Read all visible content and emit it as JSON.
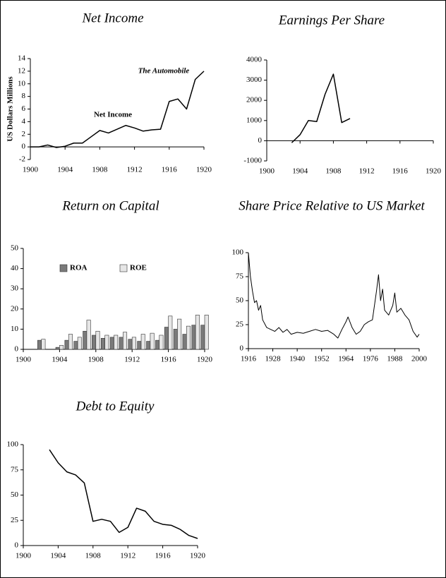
{
  "chart_data": [
    {
      "type": "line",
      "title": "Net Income",
      "ylabel": "US Dollars Millions",
      "annotations": [
        "Net Income",
        "The Automobile"
      ],
      "x": [
        1900,
        1901,
        1902,
        1903,
        1904,
        1905,
        1906,
        1907,
        1908,
        1909,
        1910,
        1911,
        1912,
        1913,
        1914,
        1915,
        1916,
        1917,
        1918,
        1919,
        1920
      ],
      "values": [
        0,
        0,
        0.3,
        -0.1,
        0.1,
        0.6,
        0.6,
        1.6,
        2.6,
        2.2,
        2.8,
        3.4,
        3.0,
        2.5,
        2.7,
        2.8,
        7.2,
        7.6,
        6.0,
        10.7,
        12.0
      ],
      "color": "#000000",
      "xlim": [
        1900,
        1920
      ],
      "xticks": [
        1900,
        1904,
        1908,
        1912,
        1916,
        1920
      ],
      "ylim": [
        -2,
        14
      ],
      "yticks": [
        -2,
        0,
        2,
        4,
        6,
        8,
        10,
        12,
        14
      ]
    },
    {
      "type": "line",
      "title": "Earnings Per Share",
      "x": [
        1903,
        1904,
        1905,
        1906,
        1907,
        1908,
        1909,
        1910
      ],
      "values": [
        -100,
        300,
        1000,
        950,
        2300,
        3300,
        900,
        1100
      ],
      "color": "#000000",
      "xlim": [
        1900,
        1920
      ],
      "xticks": [
        1900,
        1904,
        1908,
        1912,
        1916,
        1920
      ],
      "ylim": [
        -1000,
        4000
      ],
      "yticks": [
        -1000,
        0,
        1000,
        2000,
        3000,
        4000
      ]
    },
    {
      "type": "bar",
      "title": "Return on Capital",
      "legend": "upper-left",
      "x": [
        1902,
        1903,
        1904,
        1905,
        1906,
        1907,
        1908,
        1909,
        1910,
        1911,
        1912,
        1913,
        1914,
        1915,
        1916,
        1917,
        1918,
        1919,
        1920
      ],
      "series": [
        {
          "name": "ROA",
          "color": "#7a7a7a",
          "values": [
            4.5,
            null,
            1,
            4.5,
            4,
            9,
            7,
            5.5,
            6,
            6,
            5,
            4,
            4,
            4.5,
            11,
            10,
            7.5,
            12,
            12
          ]
        },
        {
          "name": "ROE",
          "color": "#e6e6e6",
          "values": [
            5,
            null,
            2,
            7.5,
            6,
            14.5,
            9,
            7,
            7,
            8.5,
            6,
            7.5,
            8,
            7,
            16.5,
            15,
            11.5,
            17,
            17
          ]
        }
      ],
      "xlim": [
        1900,
        1920
      ],
      "xticks": [
        1900,
        1904,
        1908,
        1912,
        1916,
        1920
      ],
      "ylim": [
        0,
        50
      ],
      "yticks": [
        0,
        10,
        20,
        30,
        40,
        50
      ]
    },
    {
      "type": "line",
      "title": "Share Price Relative to US Market",
      "x": [
        1916,
        1917,
        1918,
        1919,
        1920,
        1921,
        1922,
        1923,
        1925,
        1927,
        1929,
        1931,
        1933,
        1935,
        1937,
        1940,
        1943,
        1946,
        1949,
        1952,
        1955,
        1958,
        1960,
        1962,
        1964,
        1965,
        1967,
        1969,
        1971,
        1973,
        1975,
        1977,
        1978,
        1979,
        1980,
        1981,
        1982,
        1983,
        1985,
        1987,
        1988,
        1989,
        1991,
        1993,
        1995,
        1997,
        1999,
        2000
      ],
      "values": [
        100,
        75,
        60,
        48,
        50,
        40,
        45,
        30,
        22,
        20,
        18,
        22,
        17,
        20,
        15,
        17,
        16,
        18,
        20,
        18,
        19,
        15,
        11,
        20,
        28,
        33,
        22,
        15,
        18,
        25,
        28,
        30,
        45,
        60,
        77,
        50,
        62,
        40,
        35,
        45,
        58,
        38,
        42,
        35,
        30,
        18,
        12,
        15
      ],
      "color": "#000000",
      "xlim": [
        1916,
        2000
      ],
      "xticks": [
        1916,
        1928,
        1940,
        1952,
        1964,
        1976,
        1988,
        2000
      ],
      "ylim": [
        0,
        100
      ],
      "yticks": [
        0,
        25,
        50,
        75,
        100
      ]
    },
    {
      "type": "line",
      "title": "Debt to Equity",
      "x": [
        1903,
        1904,
        1905,
        1906,
        1907,
        1908,
        1909,
        1910,
        1911,
        1912,
        1913,
        1914,
        1915,
        1916,
        1917,
        1918,
        1919,
        1920
      ],
      "values": [
        95,
        82,
        73,
        70,
        62,
        24,
        26,
        24,
        13,
        18,
        37,
        34,
        24,
        21,
        20,
        16,
        10,
        7
      ],
      "color": "#000000",
      "xlim": [
        1900,
        1920
      ],
      "xticks": [
        1900,
        1904,
        1908,
        1912,
        1916,
        1920
      ],
      "ylim": [
        0,
        100
      ],
      "yticks": [
        0,
        25,
        50,
        75,
        100
      ]
    }
  ]
}
